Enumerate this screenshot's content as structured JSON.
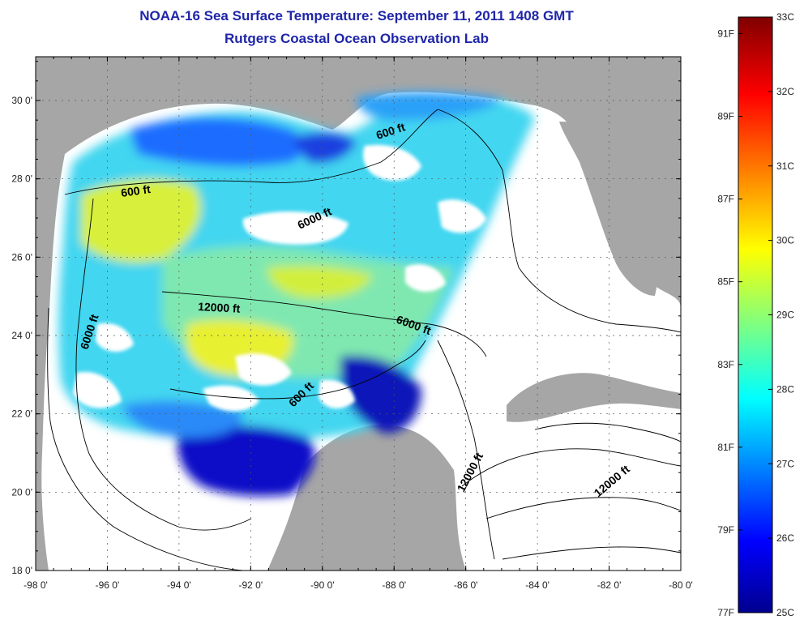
{
  "title": "NOAA-16 Sea Surface Temperature:  September 11, 2011 1408 GMT",
  "subtitle": "Rutgers Coastal Ocean Observation Lab",
  "x_ticks": [
    "-98 0'",
    "-96 0'",
    "-94 0'",
    "-92 0'",
    "-90 0'",
    "-88 0'",
    "-86 0'",
    "-84 0'",
    "-82 0'",
    "-80 0'"
  ],
  "y_ticks": [
    "30 0'",
    "28 0'",
    "26 0'",
    "24 0'",
    "22 0'",
    "20 0'",
    "18 0'"
  ],
  "contour_labels": [
    "600 ft",
    "600 ft",
    "6000 ft",
    "12000 ft",
    "6000 ft",
    "6000 ft",
    "600 ft",
    "12000 ft",
    "12000 ft"
  ],
  "colorbar": {
    "celsius": [
      "33C",
      "32C",
      "31C",
      "30C",
      "29C",
      "28C",
      "27C",
      "26C",
      "25C"
    ],
    "fahrenheit": [
      "91F",
      "89F",
      "87F",
      "85F",
      "83F",
      "81F",
      "79F",
      "77F"
    ]
  },
  "colors": {
    "land": "#a6a6a6",
    "title": "#1f26a8",
    "ocean_nodata": "#ffffff"
  }
}
